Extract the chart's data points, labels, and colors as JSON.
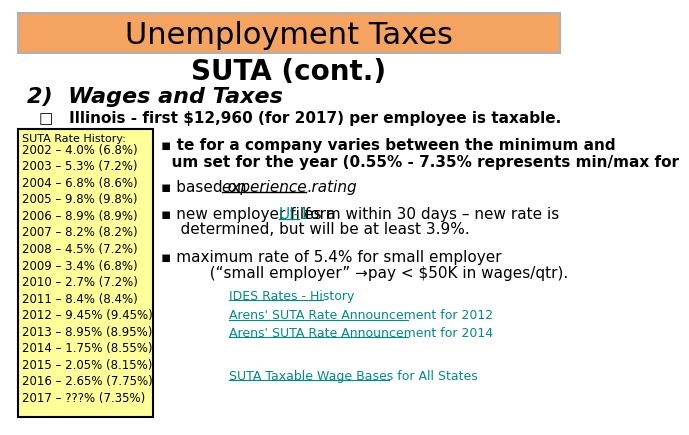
{
  "title": "Unemployment Taxes",
  "subtitle": "SUTA (cont.)",
  "section": "2)  Wages and Taxes",
  "bullet1": "□   Illinois - first $12,960 (for 2017) per employee is taxable.",
  "sidebar_title": "SUTA Rate History:",
  "sidebar_items": [
    "2002 – 4.0% (6.8%)",
    "2003 – 5.3% (7.2%)",
    "2004 – 6.8% (8.6%)",
    "2005 – 9.8% (9.8%)",
    "2006 – 8.9% (8.9%)",
    "2007 – 8.2% (8.2%)",
    "2008 – 4.5% (7.2%)",
    "2009 – 3.4% (6.8%)",
    "2010 – 2.7% (7.2%)",
    "2011 – 8.4% (8.4%)",
    "2012 – 9.45% (9.45%)",
    "2013 – 8.95% (8.95%)",
    "2014 – 1.75% (8.55%)",
    "2015 – 2.05% (8.15%)",
    "2016 – 2.65% (7.75%)",
    "2017 – ???% (7.35%)"
  ],
  "main_text_line1": "▪ te for a company varies between the minimum and",
  "main_text_line2": "  um set for the year (0.55% - 7.35% represents min/max for",
  "bullet_based_pre": "▪ based on ",
  "bullet_based_underline": "experience rating",
  "bullet_based_end": ".",
  "bullet_new_pre": "▪ new employer files a ",
  "bullet_new_link": "UI-1",
  "bullet_new_end": " form within 30 days – new rate is",
  "bullet_new_line2": "    determined, but will be at least 3.9%.",
  "bullet_max": "▪ maximum rate of 5.4% for small employer",
  "bullet_max_line2": "          (“small employer” →pay < $50K in wages/qtr).",
  "link1": "IDES Rates - History",
  "link2": "Arens' SUTA Rate Announcement for 2012",
  "link3": "Arens' SUTA Rate Announcement for 2014",
  "link4": "SUTA Taxable Wage Bases for All States",
  "header_bg": "#F4A460",
  "sidebar_bg": "#FFFF99",
  "bg_color": "#ffffff",
  "title_color": "#000000",
  "link_color": "#008B8B",
  "body_color": "#000000"
}
